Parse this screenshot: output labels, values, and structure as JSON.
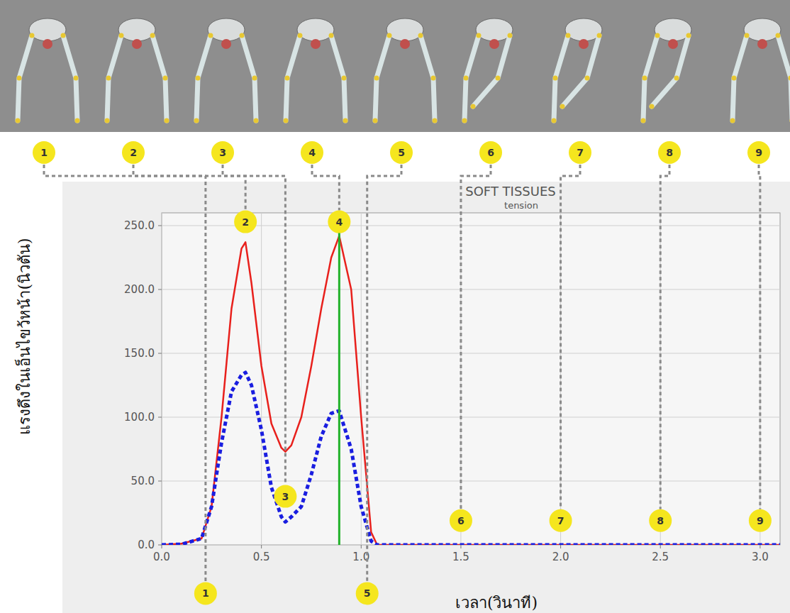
{
  "chart_data": {
    "type": "line",
    "title": "SOFT TISSUES",
    "subtitle": "tension",
    "x_label": "เวลา(วินาที)",
    "y_label": "แรงดึงในเอ็นไขว้หน้า(นิวตัน)",
    "xlim": [
      0,
      3.1
    ],
    "ylim": [
      0,
      260
    ],
    "xticks": [
      {
        "value": 0,
        "label": "0.0"
      },
      {
        "value": 0.5,
        "label": "0.5"
      },
      {
        "value": 1,
        "label": "1.0"
      },
      {
        "value": 1.5,
        "label": "1.5"
      },
      {
        "value": 2,
        "label": "2.0"
      },
      {
        "value": 2.5,
        "label": "2.5"
      },
      {
        "value": 3,
        "label": "3.0"
      }
    ],
    "yticks": [
      {
        "value": 0,
        "label": "0.0"
      },
      {
        "value": 50,
        "label": "50.0"
      },
      {
        "value": 100,
        "label": "100.0"
      },
      {
        "value": 150,
        "label": "150.0"
      },
      {
        "value": 200,
        "label": "200.0"
      },
      {
        "value": 250,
        "label": "250.0"
      }
    ],
    "grid": true,
    "x": [
      0,
      0.1,
      0.2,
      0.25,
      0.3,
      0.35,
      0.4,
      0.42,
      0.45,
      0.5,
      0.55,
      0.6,
      0.62,
      0.65,
      0.7,
      0.75,
      0.8,
      0.85,
      0.89,
      0.95,
      1.0,
      1.05,
      1.08,
      1.5,
      2.0,
      2.5,
      3.0,
      3.1
    ],
    "series": [
      {
        "color": "#e8201c",
        "line_style": "solid",
        "values": [
          0,
          1,
          5,
          30,
          100,
          185,
          232,
          237,
          205,
          140,
          95,
          76,
          73,
          78,
          100,
          140,
          185,
          225,
          242,
          200,
          100,
          10,
          0,
          0,
          0,
          0,
          0,
          0
        ]
      },
      {
        "color": "#1a1ee0",
        "line_style": "dotted",
        "values": [
          0,
          0.5,
          5,
          30,
          80,
          120,
          133,
          135,
          125,
          90,
          45,
          22,
          18,
          22,
          30,
          55,
          85,
          103,
          105,
          75,
          30,
          3,
          0,
          0,
          0,
          0,
          0,
          0
        ]
      }
    ],
    "marker_line": {
      "x": 0.89,
      "color": "#22b22a"
    },
    "annotations": [
      {
        "label": "1",
        "x": 0.22,
        "y": -38
      },
      {
        "label": "2",
        "x": 0.42,
        "y": 253
      },
      {
        "label": "3",
        "x": 0.62,
        "y": 38
      },
      {
        "label": "4",
        "x": 0.89,
        "y": 253
      },
      {
        "label": "5",
        "x": 1.03,
        "y": -38
      },
      {
        "label": "6",
        "x": 1.5,
        "y": 19
      },
      {
        "label": "7",
        "x": 2.0,
        "y": 19
      },
      {
        "label": "8",
        "x": 2.5,
        "y": 19
      },
      {
        "label": "9",
        "x": 3.0,
        "y": 19
      }
    ]
  }
}
